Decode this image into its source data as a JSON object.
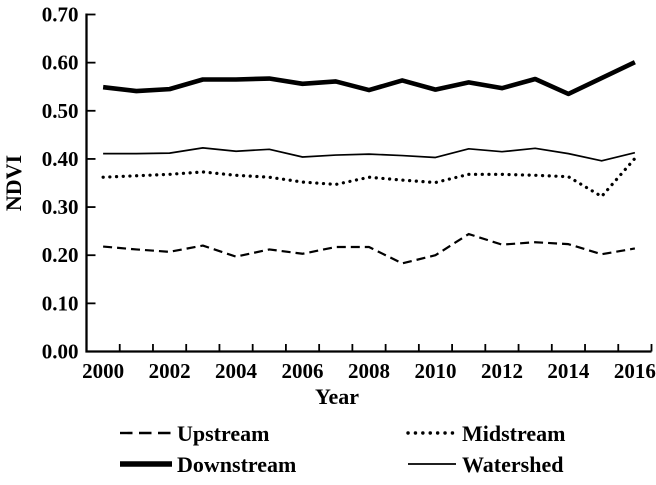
{
  "chart_data": {
    "type": "line",
    "title": "",
    "xlabel": "Year",
    "ylabel": "NDVI",
    "x": [
      2000,
      2001,
      2002,
      2003,
      2004,
      2005,
      2006,
      2007,
      2008,
      2009,
      2010,
      2011,
      2012,
      2013,
      2014,
      2015,
      2016
    ],
    "xtick_labels": [
      "2000",
      "2002",
      "2004",
      "2006",
      "2008",
      "2010",
      "2012",
      "2014",
      "2016"
    ],
    "ylim": [
      0.0,
      0.7
    ],
    "ytick_labels": [
      "0.00",
      "0.10",
      "0.20",
      "0.30",
      "0.40",
      "0.50",
      "0.60",
      "0.70"
    ],
    "grid": false,
    "legend_position": "bottom-two-column",
    "line_color": "#000000",
    "background_color": "#ffffff",
    "series": [
      {
        "name": "Upstream",
        "style": "dashed",
        "values": [
          0.218,
          0.212,
          0.207,
          0.22,
          0.197,
          0.212,
          0.203,
          0.217,
          0.217,
          0.183,
          0.2,
          0.244,
          0.222,
          0.227,
          0.223,
          0.202,
          0.214
        ]
      },
      {
        "name": "Midstream",
        "style": "dotted",
        "values": [
          0.362,
          0.365,
          0.368,
          0.373,
          0.366,
          0.362,
          0.352,
          0.347,
          0.362,
          0.356,
          0.351,
          0.368,
          0.368,
          0.366,
          0.363,
          0.322,
          0.401
        ]
      },
      {
        "name": "Downstream",
        "style": "solid-thick",
        "values": [
          0.549,
          0.541,
          0.545,
          0.565,
          0.565,
          0.567,
          0.556,
          0.561,
          0.543,
          0.563,
          0.544,
          0.559,
          0.547,
          0.566,
          0.535,
          0.568,
          0.601
        ]
      },
      {
        "name": "Watershed",
        "style": "solid-thin",
        "values": [
          0.411,
          0.411,
          0.412,
          0.423,
          0.416,
          0.42,
          0.404,
          0.408,
          0.41,
          0.407,
          0.403,
          0.421,
          0.415,
          0.422,
          0.411,
          0.396,
          0.413
        ]
      }
    ]
  }
}
